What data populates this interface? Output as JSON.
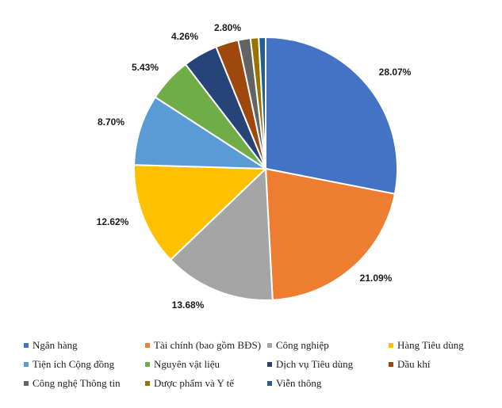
{
  "chart_data": {
    "type": "pie",
    "categories": [
      "Ngân hàng",
      "Tài chính (bao gồm BĐS)",
      "Công nghiệp",
      "Hàng Tiêu dùng",
      "Tiện ích Cộng đồng",
      "Nguyên vật liệu",
      "Dịch vụ Tiêu dùng",
      "Dầu khí",
      "Công nghệ Thông tin",
      "Dược phẩm và Y tế",
      "Viễn thông"
    ],
    "values": [
      28.07,
      21.09,
      13.68,
      12.62,
      8.7,
      5.43,
      4.26,
      2.8,
      1.5,
      1.0,
      0.85
    ],
    "labels": [
      "28.07%",
      "21.09%",
      "13.68%",
      "12.62%",
      "8.70%",
      "5.43%",
      "4.26%",
      "2.80%",
      "",
      "",
      ""
    ],
    "colors": [
      "#4472C4",
      "#ED7D31",
      "#A5A5A5",
      "#FFC000",
      "#5B9BD5",
      "#70AD47",
      "#264478",
      "#9E480E",
      "#636363",
      "#997300",
      "#255E91"
    ],
    "title": "",
    "legend_position": "bottom"
  }
}
